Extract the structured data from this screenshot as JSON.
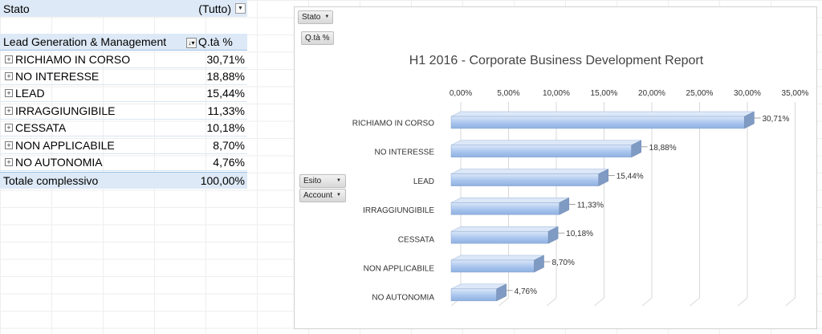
{
  "filter": {
    "label": "Stato",
    "value": "(Tutto)"
  },
  "pivot": {
    "row_header": "Lead Generation & Management",
    "value_header": "Q.tà %",
    "rows": [
      {
        "label": "RICHIAMO IN CORSO",
        "value": "30,71%"
      },
      {
        "label": "NO INTERESSE",
        "value": "18,88%"
      },
      {
        "label": "LEAD",
        "value": "15,44%"
      },
      {
        "label": "IRRAGGIUNGIBILE",
        "value": "11,33%"
      },
      {
        "label": "CESSATA",
        "value": "10,18%"
      },
      {
        "label": "NON APPLICABILE",
        "value": "8,70%"
      },
      {
        "label": "NO AUTONOMIA",
        "value": "4,76%"
      }
    ],
    "total_label": "Totale complessivo",
    "total_value": "100,00%"
  },
  "chart_buttons": {
    "stato": "Stato",
    "qta": "Q.tà %",
    "esito": "Esito",
    "account": "Account"
  },
  "chart_data": {
    "type": "bar",
    "orientation": "horizontal",
    "title": "H1 2016 - Corporate Business Development Report",
    "categories": [
      "RICHIAMO IN CORSO",
      "NO INTERESSE",
      "LEAD",
      "IRRAGGIUNGIBILE",
      "CESSATA",
      "NON APPLICABILE",
      "NO AUTONOMIA"
    ],
    "values": [
      30.71,
      18.88,
      15.44,
      11.33,
      10.18,
      8.7,
      4.76
    ],
    "data_labels": [
      "30,71%",
      "18,88%",
      "15,44%",
      "11,33%",
      "10,18%",
      "8,70%",
      "4,76%"
    ],
    "xlim": [
      0,
      35
    ],
    "ticks": [
      0,
      5,
      10,
      15,
      20,
      25,
      30,
      35
    ],
    "tick_labels": [
      "0,00%",
      "5,00%",
      "10,00%",
      "15,00%",
      "20,00%",
      "25,00%",
      "30,00%",
      "35,00%"
    ],
    "axis_position": "top",
    "grid": true,
    "colors": {
      "bar_front": "#a9c5ee",
      "bar_top": "#dce8f8",
      "bar_side": "#7f9bc4",
      "grid": "#d9d9d9"
    }
  }
}
